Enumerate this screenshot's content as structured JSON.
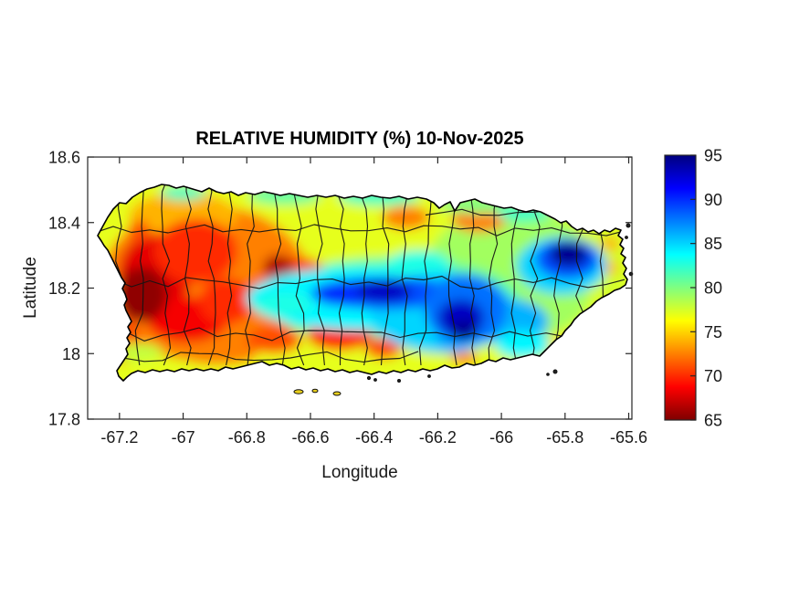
{
  "figure": {
    "background": "#ffffff",
    "axis_color": "#262626"
  },
  "chart_data": {
    "type": "heatmap",
    "title": "RELATIVE HUMIDITY (%) 10-Nov-2025",
    "xlabel": "Longitude",
    "ylabel": "Latitude",
    "region": "Puerto Rico with municipality boundaries",
    "grid": false,
    "xlim": [
      -67.3,
      -65.59
    ],
    "ylim": [
      17.8,
      18.6
    ],
    "xticks": [
      -67.2,
      -67,
      -66.8,
      -66.6,
      -66.4,
      -66.2,
      -66,
      -65.8,
      -65.6
    ],
    "yticks": [
      18.6,
      18.4,
      18.2,
      18,
      17.8
    ],
    "colorbar": {
      "min": 65,
      "max": 95,
      "ticks": [
        95,
        90,
        85,
        80,
        75,
        70,
        65
      ],
      "colormap": "jet_reversed",
      "stops": [
        [
          65,
          "#7f0000"
        ],
        [
          68.75,
          "#ff0000"
        ],
        [
          76.25,
          "#ffff00"
        ],
        [
          83.75,
          "#00ffff"
        ],
        [
          91.25,
          "#0000ff"
        ],
        [
          95,
          "#00007f"
        ]
      ],
      "units": "%"
    },
    "field_samples": [
      {
        "lon": -66.45,
        "lat": 18.2,
        "rx": 1.3,
        "ry": 0.55,
        "value": 77
      },
      {
        "lon": -66.93,
        "lat": 18.215,
        "rx": 0.33,
        "ry": 0.24,
        "value": 72.5
      },
      {
        "lon": -65.97,
        "lat": 18.24,
        "rx": 0.27,
        "ry": 0.21,
        "value": 79
      },
      {
        "lon": -66.34,
        "lat": 18.16,
        "rx": 0.4,
        "ry": 0.135,
        "value": 81
      },
      {
        "lon": -67.0,
        "lat": 18.42,
        "rx": 0.17,
        "ry": 0.072,
        "value": 74
      },
      {
        "lon": -66.3,
        "lat": 18.415,
        "rx": 0.075,
        "ry": 0.036,
        "value": 72.5
      },
      {
        "lon": -66.07,
        "lat": 18.41,
        "rx": 0.086,
        "ry": 0.04,
        "value": 72.5
      },
      {
        "lon": -67.0,
        "lat": 18.49,
        "rx": 0.072,
        "ry": 0.022,
        "value": 82
      },
      {
        "lon": -66.68,
        "lat": 18.483,
        "rx": 0.115,
        "ry": 0.028,
        "value": 81
      },
      {
        "lon": -66.385,
        "lat": 18.48,
        "rx": 0.13,
        "ry": 0.028,
        "value": 82
      },
      {
        "lon": -66.084,
        "lat": 18.455,
        "rx": 0.115,
        "ry": 0.028,
        "value": 80
      },
      {
        "lon": -65.93,
        "lat": 18.43,
        "rx": 0.086,
        "ry": 0.028,
        "value": 82
      },
      {
        "lon": -65.676,
        "lat": 18.27,
        "rx": 0.086,
        "ry": 0.117,
        "value": 77.5
      },
      {
        "lon": -67.088,
        "lat": 18.243,
        "rx": 0.115,
        "ry": 0.125,
        "value": 68
      },
      {
        "lon": -66.987,
        "lat": 18.104,
        "rx": 0.129,
        "ry": 0.07,
        "value": 68.5
      },
      {
        "lon": -66.959,
        "lat": 18.313,
        "rx": 0.129,
        "ry": 0.098,
        "value": 70
      },
      {
        "lon": -66.864,
        "lat": 18.16,
        "rx": 0.086,
        "ry": 0.07,
        "value": 70
      },
      {
        "lon": -67.188,
        "lat": 18.042,
        "rx": 0.052,
        "ry": 0.07,
        "value": 71
      },
      {
        "lon": -67.13,
        "lat": 18.18,
        "rx": 0.08,
        "ry": 0.084,
        "value": 65.5
      },
      {
        "lon": -66.709,
        "lat": 18.187,
        "rx": 0.086,
        "ry": 0.056,
        "value": 70
      },
      {
        "lon": -66.623,
        "lat": 18.243,
        "rx": 0.072,
        "ry": 0.05,
        "value": 70.5
      },
      {
        "lon": -66.7,
        "lat": 18.263,
        "rx": 0.049,
        "ry": 0.039,
        "value": 66.5
      },
      {
        "lon": -66.508,
        "lat": 18.059,
        "rx": 0.103,
        "ry": 0.05,
        "value": 69.5
      },
      {
        "lon": -66.715,
        "lat": 18.042,
        "rx": 0.086,
        "ry": 0.042,
        "value": 71
      },
      {
        "lon": -66.887,
        "lat": 17.998,
        "rx": 0.121,
        "ry": 0.033,
        "value": 72.5
      },
      {
        "lon": -66.37,
        "lat": 18.017,
        "rx": 0.057,
        "ry": 0.033,
        "value": 71
      },
      {
        "lon": -67.139,
        "lat": 18.374,
        "rx": 0.035,
        "ry": 0.033,
        "value": 71
      },
      {
        "lon": -67.14,
        "lat": 18.005,
        "rx": 0.075,
        "ry": 0.028,
        "value": 78
      },
      {
        "lon": -66.118,
        "lat": 17.987,
        "rx": 0.043,
        "ry": 0.022,
        "value": 73
      },
      {
        "lon": -65.659,
        "lat": 18.335,
        "rx": 0.029,
        "ry": 0.022,
        "value": 74
      },
      {
        "lon": -65.659,
        "lat": 18.263,
        "rx": 0.024,
        "ry": 0.024,
        "value": 74
      },
      {
        "lon": -65.8,
        "lat": 18.03,
        "rx": 0.07,
        "ry": 0.03,
        "value": 75.5
      },
      {
        "lon": -66.428,
        "lat": 18.168,
        "rx": 0.373,
        "ry": 0.098,
        "value": 84
      },
      {
        "lon": -66.26,
        "lat": 18.27,
        "rx": 0.1,
        "ry": 0.045,
        "value": 83
      },
      {
        "lon": -66.184,
        "lat": 18.126,
        "rx": 0.23,
        "ry": 0.125,
        "value": 85
      },
      {
        "lon": -66.686,
        "lat": 18.151,
        "rx": 0.092,
        "ry": 0.036,
        "value": 83
      },
      {
        "lon": -65.98,
        "lat": 18.098,
        "rx": 0.129,
        "ry": 0.07,
        "value": 86
      },
      {
        "lon": -65.934,
        "lat": 18.028,
        "rx": 0.086,
        "ry": 0.042,
        "value": 84
      },
      {
        "lon": -65.811,
        "lat": 18.268,
        "rx": 0.143,
        "ry": 0.089,
        "value": 85
      },
      {
        "lon": -66.15,
        "lat": 18.04,
        "rx": 0.055,
        "ry": 0.04,
        "value": 86
      },
      {
        "lon": -66.37,
        "lat": 18.185,
        "rx": 0.23,
        "ry": 0.05,
        "value": 89
      },
      {
        "lon": -66.514,
        "lat": 18.179,
        "rx": 0.072,
        "ry": 0.033,
        "value": 90
      },
      {
        "lon": -66.112,
        "lat": 18.137,
        "rx": 0.129,
        "ry": 0.106,
        "value": 88
      },
      {
        "lon": -65.793,
        "lat": 18.288,
        "rx": 0.1,
        "ry": 0.061,
        "value": 89
      },
      {
        "lon": -66.37,
        "lat": 18.19,
        "rx": 0.086,
        "ry": 0.033,
        "value": 93
      },
      {
        "lon": -66.127,
        "lat": 18.109,
        "rx": 0.072,
        "ry": 0.056,
        "value": 93
      },
      {
        "lon": -66.118,
        "lat": 18.072,
        "rx": 0.04,
        "ry": 0.031,
        "value": 94.5
      },
      {
        "lon": -65.788,
        "lat": 18.304,
        "rx": 0.06,
        "ry": 0.039,
        "value": 94.5
      }
    ]
  }
}
